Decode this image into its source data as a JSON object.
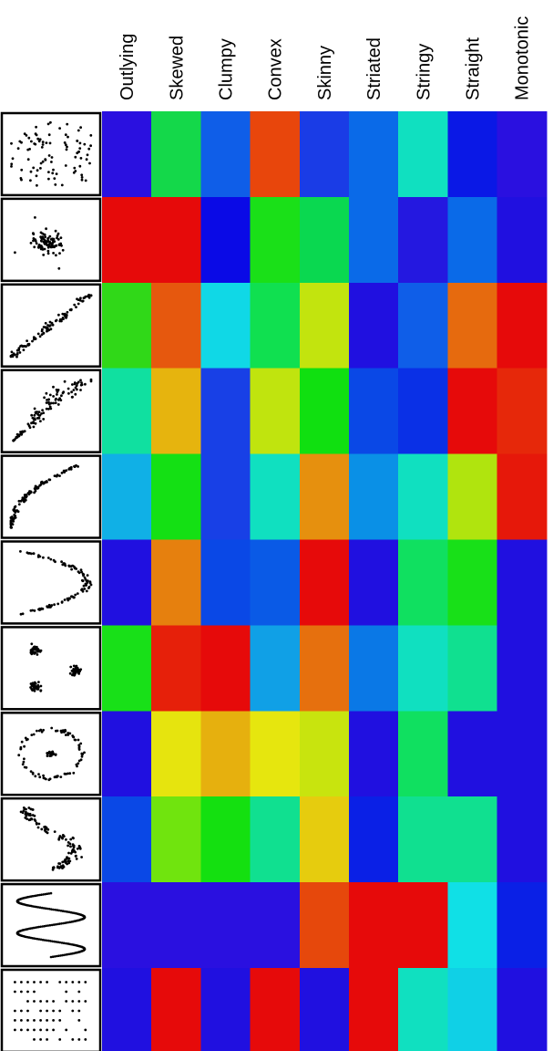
{
  "chart_data": {
    "type": "heatmap",
    "title": "",
    "columns": [
      "Outlying",
      "Skewed",
      "Clumpy",
      "Convex",
      "Skinny",
      "Striated",
      "Stringy",
      "Straight",
      "Monotonic"
    ],
    "row_thumbnails": [
      "uniform-random-scatter-icon",
      "central-clump-with-outliers-icon",
      "linear-positive-trend-icon",
      "fan-positive-trend-icon",
      "exponential-curve-icon",
      "inverted-u-curve-icon",
      "three-clusters-icon",
      "ring-with-center-icon",
      "wavy-noisy-scatter-icon",
      "sine-wave-icon",
      "discrete-grid-stripes-icon"
    ],
    "cell_colors": [
      [
        "#2a10e0",
        "#14d84a",
        "#0f5ee8",
        "#e8460c",
        "#1a3ce6",
        "#0a6ae8",
        "#10e0c0",
        "#0a18e6",
        "#2a10e0"
      ],
      [
        "#e60a0a",
        "#e60a0a",
        "#0a0ae6",
        "#1ae018",
        "#0ad850",
        "#0a6ae8",
        "#2418e0",
        "#0a6ae8",
        "#2010e0"
      ],
      [
        "#30d818",
        "#e6580e",
        "#10d8e6",
        "#10e050",
        "#c2e40e",
        "#2010e0",
        "#0f5ee8",
        "#e66a0e",
        "#e60a0a"
      ],
      [
        "#10e0a0",
        "#e6b40e",
        "#1840e6",
        "#c0e40e",
        "#10e010",
        "#0a48e6",
        "#0a30e6",
        "#e60a0a",
        "#e6280a"
      ],
      [
        "#10b0e6",
        "#14e014",
        "#1840e6",
        "#10e0c0",
        "#e6900e",
        "#0a90e6",
        "#10e0c0",
        "#b0e40e",
        "#e6180a"
      ],
      [
        "#2010e0",
        "#e6800e",
        "#0a48e6",
        "#0a5ae6",
        "#e60a0a",
        "#2010e0",
        "#10e060",
        "#18e018",
        "#2010e0"
      ],
      [
        "#18e018",
        "#e6200a",
        "#e60a0a",
        "#10a0e6",
        "#e6700e",
        "#0a78e6",
        "#10e0c0",
        "#10e090",
        "#2010e0"
      ],
      [
        "#2010e0",
        "#e6e40e",
        "#e6b00e",
        "#e6e60e",
        "#c8e40e",
        "#2010e0",
        "#10e060",
        "#2010e0",
        "#2010e0"
      ],
      [
        "#0a48e6",
        "#70e40e",
        "#14e010",
        "#10e090",
        "#e6cc0e",
        "#0a20e6",
        "#10e090",
        "#10e090",
        "#2010e0"
      ],
      [
        "#2a10e0",
        "#2a10e0",
        "#2a10e0",
        "#2a10e0",
        "#e6480c",
        "#e60a0a",
        "#e60a0a",
        "#10e0e6",
        "#0a20e6"
      ],
      [
        "#2010e0",
        "#e60a0a",
        "#2010e0",
        "#e60a0a",
        "#2010e0",
        "#e60a0a",
        "#10e0c0",
        "#10d0e6",
        "#2010e0"
      ]
    ],
    "xlabel": "",
    "ylabel": "",
    "legend": "none",
    "grid": false
  }
}
